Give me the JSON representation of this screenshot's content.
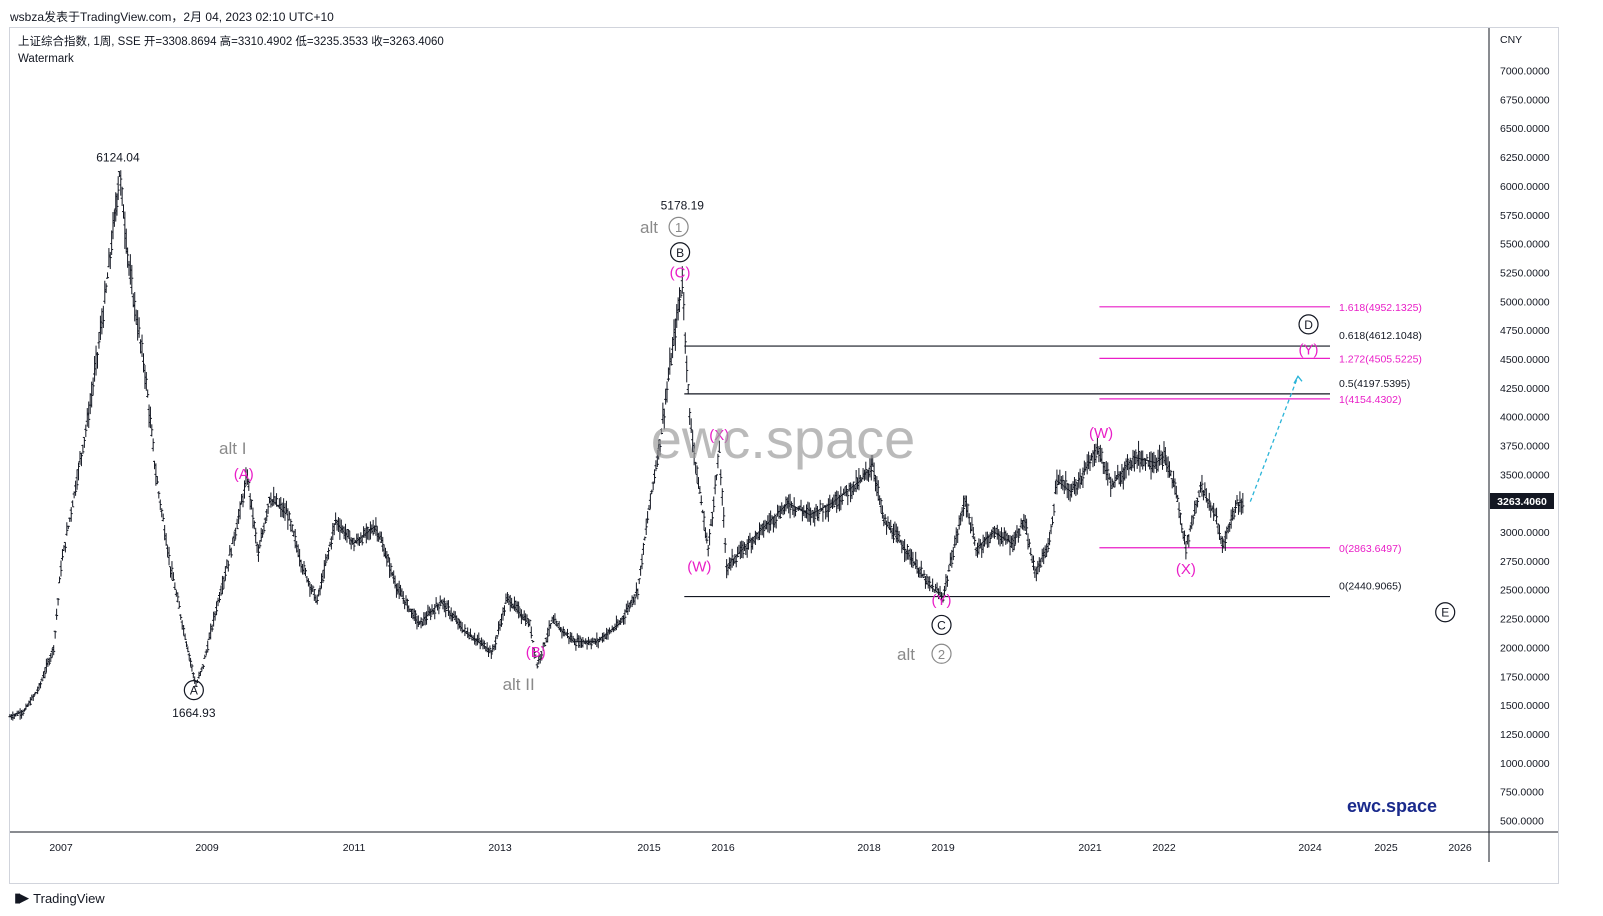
{
  "header": {
    "publish_line": "wsbza发表于TradingView.com，2月 04, 2023 02:10 UTC+10",
    "legend_line": "上证综合指数, 1周, SSE  开=3308.8694  高=3310.4902  低=3235.3533  收=3263.4060",
    "watermark_label": "Watermark"
  },
  "footer": {
    "brand": "TradingView"
  },
  "watermarks": {
    "center": "ewc.space",
    "bottom": "ewc.space"
  },
  "colors": {
    "accent": "#e91ec7",
    "price": "#131722",
    "gray": "#8a8a8a",
    "projection": "#2ab4d8"
  },
  "chart_data": {
    "type": "bar",
    "currency": "CNY",
    "current_price": "3263.4060",
    "y_ticks": [
      "7000.0000",
      "6750.0000",
      "6500.0000",
      "6250.0000",
      "6000.0000",
      "5750.0000",
      "5500.0000",
      "5250.0000",
      "5000.0000",
      "4750.0000",
      "4500.0000",
      "4250.0000",
      "4000.0000",
      "3750.0000",
      "3500.0000",
      "3250.0000",
      "3000.0000",
      "2750.0000",
      "2500.0000",
      "2250.0000",
      "2000.0000",
      "1750.0000",
      "1500.0000",
      "1250.0000",
      "1000.0000",
      "750.0000",
      "500.0000"
    ],
    "x_ticks": [
      {
        "label": "2007",
        "t": 2007.0
      },
      {
        "label": "2009",
        "t": 2009.0
      },
      {
        "label": "2011",
        "t": 2011.0
      },
      {
        "label": "2013",
        "t": 2013.0
      },
      {
        "label": "2015",
        "t": 2015.0
      },
      {
        "label": "2016",
        "t": 2016.0
      },
      {
        "label": "2018",
        "t": 2018.0
      },
      {
        "label": "2019",
        "t": 2019.0
      },
      {
        "label": "2021",
        "t": 2021.0
      },
      {
        "label": "2022",
        "t": 2022.0
      },
      {
        "label": "2024",
        "t": 2024.0
      },
      {
        "label": "2025",
        "t": 2025.0
      },
      {
        "label": "2026",
        "t": 2026.0
      }
    ],
    "price_path": [
      [
        2006.3,
        1400
      ],
      [
        2006.5,
        1450
      ],
      [
        2006.7,
        1650
      ],
      [
        2006.9,
        2000
      ],
      [
        2007.0,
        2700
      ],
      [
        2007.2,
        3400
      ],
      [
        2007.4,
        4100
      ],
      [
        2007.6,
        5000
      ],
      [
        2007.75,
        5800
      ],
      [
        2007.8,
        6124.04
      ],
      [
        2007.95,
        5200
      ],
      [
        2008.15,
        4400
      ],
      [
        2008.3,
        3500
      ],
      [
        2008.5,
        2700
      ],
      [
        2008.7,
        2100
      ],
      [
        2008.85,
        1664.93
      ],
      [
        2008.95,
        1850
      ],
      [
        2009.15,
        2400
      ],
      [
        2009.35,
        2900
      ],
      [
        2009.55,
        3478
      ],
      [
        2009.7,
        2800
      ],
      [
        2009.85,
        3300
      ],
      [
        2010.1,
        3150
      ],
      [
        2010.3,
        2700
      ],
      [
        2010.5,
        2400
      ],
      [
        2010.75,
        3100
      ],
      [
        2011.0,
        2900
      ],
      [
        2011.3,
        3050
      ],
      [
        2011.6,
        2500
      ],
      [
        2011.9,
        2200
      ],
      [
        2012.2,
        2400
      ],
      [
        2012.5,
        2150
      ],
      [
        2012.9,
        1960
      ],
      [
        2013.1,
        2430
      ],
      [
        2013.4,
        2200
      ],
      [
        2013.5,
        1849
      ],
      [
        2013.7,
        2230
      ],
      [
        2014.0,
        2050
      ],
      [
        2014.3,
        2050
      ],
      [
        2014.6,
        2200
      ],
      [
        2014.85,
        2500
      ],
      [
        2015.0,
        3200
      ],
      [
        2015.15,
        3800
      ],
      [
        2015.3,
        4500
      ],
      [
        2015.45,
        5178.19
      ],
      [
        2015.55,
        4000
      ],
      [
        2015.65,
        3500
      ],
      [
        2015.8,
        2850
      ],
      [
        2015.95,
        3700
      ],
      [
        2016.05,
        2700
      ],
      [
        2016.2,
        2800
      ],
      [
        2016.5,
        3000
      ],
      [
        2016.9,
        3250
      ],
      [
        2017.2,
        3150
      ],
      [
        2017.5,
        3250
      ],
      [
        2017.9,
        3450
      ],
      [
        2018.05,
        3587
      ],
      [
        2018.2,
        3100
      ],
      [
        2018.5,
        2850
      ],
      [
        2018.8,
        2550
      ],
      [
        2019.0,
        2440.9065
      ],
      [
        2019.2,
        3000
      ],
      [
        2019.3,
        3288
      ],
      [
        2019.45,
        2850
      ],
      [
        2019.7,
        3000
      ],
      [
        2019.95,
        2900
      ],
      [
        2020.1,
        3100
      ],
      [
        2020.25,
        2646
      ],
      [
        2020.45,
        2900
      ],
      [
        2020.55,
        3450
      ],
      [
        2020.75,
        3350
      ],
      [
        2021.0,
        3600
      ],
      [
        2021.1,
        3731
      ],
      [
        2021.3,
        3400
      ],
      [
        2021.6,
        3650
      ],
      [
        2021.9,
        3600
      ],
      [
        2022.0,
        3650
      ],
      [
        2022.15,
        3400
      ],
      [
        2022.3,
        2863.6497
      ],
      [
        2022.5,
        3400
      ],
      [
        2022.7,
        3150
      ],
      [
        2022.8,
        2885
      ],
      [
        2023.0,
        3250
      ],
      [
        2023.1,
        3263.406
      ]
    ],
    "horizontal_levels": [
      {
        "label": "0.618(4612.1048)",
        "value": 4612.1048,
        "color": "#131722",
        "x_from": 2015.45
      },
      {
        "label": "0.5(4197.5395)",
        "value": 4197.5395,
        "color": "#131722",
        "x_from": 2015.45
      },
      {
        "label": "0(2440.9065)",
        "value": 2440.9065,
        "color": "#131722",
        "x_from": 2015.45
      },
      {
        "label": "1.618(4952.1325)",
        "value": 4952.1325,
        "color": "#e91ec7",
        "x_from": 2021.1
      },
      {
        "label": "1.272(4505.5225)",
        "value": 4505.5225,
        "color": "#e91ec7",
        "x_from": 2021.1
      },
      {
        "label": "1(4154.4302)",
        "value": 4154.4302,
        "color": "#e91ec7",
        "x_from": 2021.1
      },
      {
        "label": "0(2863.6497)",
        "value": 2863.6497,
        "color": "#e91ec7",
        "x_from": 2021.1
      }
    ],
    "projection": [
      [
        2023.1,
        3263.406
      ],
      [
        2024.0,
        4350
      ]
    ],
    "annotations": [
      {
        "text": "6124.04",
        "t": 2007.78,
        "v": 6245,
        "style": "price"
      },
      {
        "text": "1664.93",
        "t": 2008.82,
        "v": 1430,
        "style": "price"
      },
      {
        "text": "5178.19",
        "t": 2015.45,
        "v": 5830,
        "style": "price"
      },
      {
        "text": "A",
        "t": 2008.82,
        "v": 1630,
        "style": "circle"
      },
      {
        "text": "B",
        "t": 2015.42,
        "v": 5425,
        "style": "circle"
      },
      {
        "text": "C",
        "t": 2018.98,
        "v": 2195,
        "style": "circle"
      },
      {
        "text": "D",
        "t": 2023.98,
        "v": 4800,
        "style": "circle"
      },
      {
        "text": "E",
        "t": 2025.8,
        "v": 2305,
        "style": "circle"
      },
      {
        "text": "alt",
        "t": 2015.0,
        "v": 5645,
        "style": "alt"
      },
      {
        "text": "1",
        "t": 2015.4,
        "v": 5645,
        "style": "altcircle"
      },
      {
        "text": "alt",
        "t": 2018.5,
        "v": 1945,
        "style": "alt"
      },
      {
        "text": "2",
        "t": 2018.98,
        "v": 1945,
        "style": "altcircle"
      },
      {
        "text": "alt I",
        "t": 2009.35,
        "v": 3730,
        "style": "alt"
      },
      {
        "text": "alt II",
        "t": 2013.25,
        "v": 1685,
        "style": "alt"
      },
      {
        "text": "(A)",
        "t": 2009.5,
        "v": 3505,
        "style": "pink"
      },
      {
        "text": "(B)",
        "t": 2013.48,
        "v": 1960,
        "style": "pink"
      },
      {
        "text": "(C)",
        "t": 2015.42,
        "v": 5250,
        "style": "pink"
      },
      {
        "text": "(W)",
        "t": 2015.68,
        "v": 2700,
        "style": "pink"
      },
      {
        "text": "(X)",
        "t": 2015.95,
        "v": 3840,
        "style": "pink"
      },
      {
        "text": "(Y)",
        "t": 2018.98,
        "v": 2410,
        "style": "pink"
      },
      {
        "text": "(W)",
        "t": 2021.15,
        "v": 3860,
        "style": "pink"
      },
      {
        "text": "(X)",
        "t": 2022.3,
        "v": 2680,
        "style": "pink"
      },
      {
        "text": "(Y)",
        "t": 2023.98,
        "v": 4580,
        "style": "pink"
      }
    ]
  }
}
